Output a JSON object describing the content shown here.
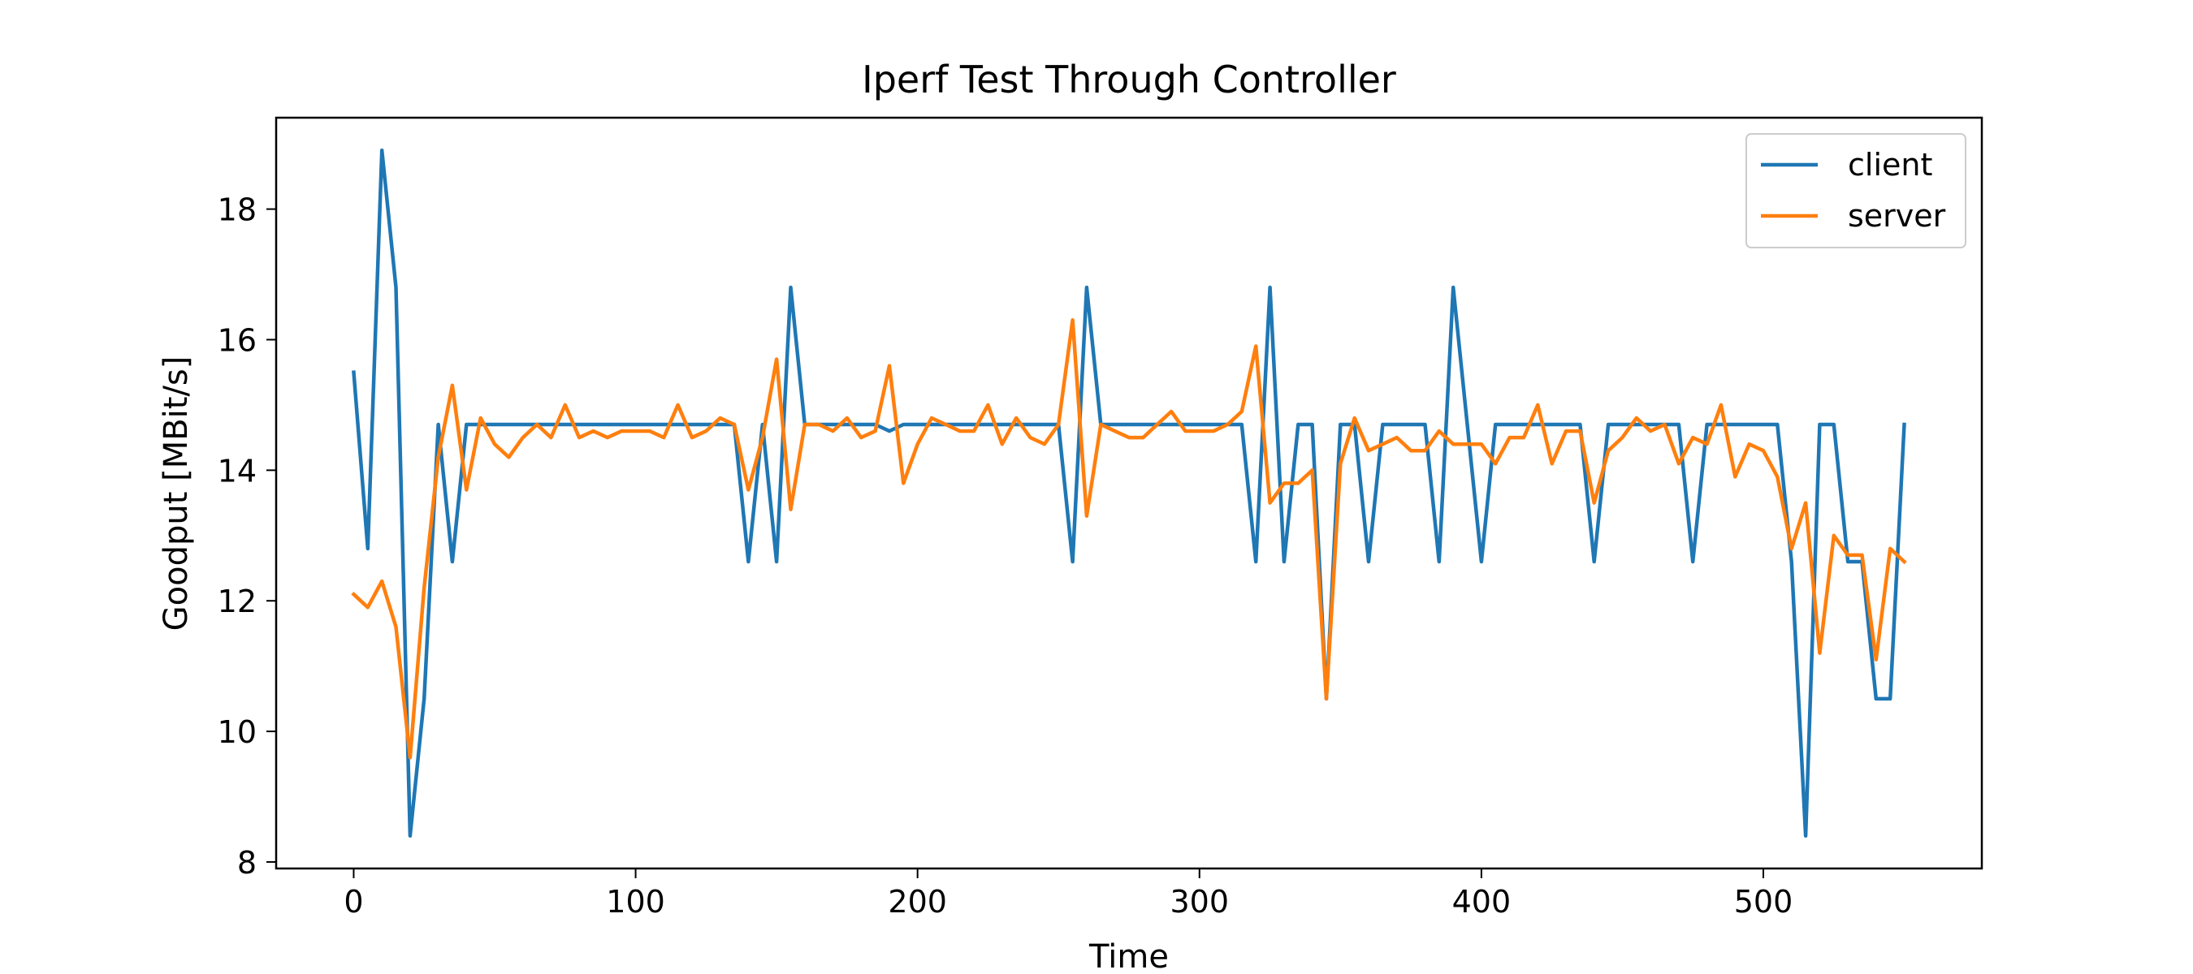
{
  "chart_data": {
    "type": "line",
    "title": "Iperf Test Through Controller",
    "xlabel": "Time",
    "ylabel": "Goodput [MBit/s]",
    "xlim": [
      -27.5,
      577.5
    ],
    "ylim": [
      7.9,
      19.4
    ],
    "xticks": [
      0,
      100,
      200,
      300,
      400,
      500
    ],
    "yticks": [
      8,
      10,
      12,
      14,
      16,
      18
    ],
    "grid": false,
    "legend_position": "top-right",
    "x": [
      0,
      5,
      10,
      15,
      20,
      25,
      30,
      35,
      40,
      45,
      50,
      55,
      60,
      65,
      70,
      75,
      80,
      85,
      90,
      95,
      100,
      105,
      110,
      115,
      120,
      125,
      130,
      135,
      140,
      145,
      150,
      155,
      160,
      165,
      170,
      175,
      180,
      185,
      190,
      195,
      200,
      205,
      210,
      215,
      220,
      225,
      230,
      235,
      240,
      245,
      250,
      255,
      260,
      265,
      270,
      275,
      280,
      285,
      290,
      295,
      300,
      305,
      310,
      315,
      320,
      325,
      330,
      335,
      340,
      345,
      350,
      355,
      360,
      365,
      370,
      375,
      380,
      385,
      390,
      395,
      400,
      405,
      410,
      415,
      420,
      425,
      430,
      435,
      440,
      445,
      450,
      455,
      460,
      465,
      470,
      475,
      480,
      485,
      490,
      495,
      500,
      505,
      510,
      515,
      520,
      525,
      530,
      535,
      540,
      545,
      550
    ],
    "series": [
      {
        "name": "client",
        "color": "#1f77b4",
        "values": [
          15.5,
          12.8,
          18.9,
          16.8,
          8.4,
          10.5,
          14.7,
          12.6,
          14.7,
          14.7,
          14.7,
          14.7,
          14.7,
          14.7,
          14.7,
          14.7,
          14.7,
          14.7,
          14.7,
          14.7,
          14.7,
          14.7,
          14.7,
          14.7,
          14.7,
          14.7,
          14.7,
          14.7,
          12.6,
          14.7,
          12.6,
          16.8,
          14.7,
          14.7,
          14.7,
          14.7,
          14.7,
          14.7,
          14.6,
          14.7,
          14.7,
          14.7,
          14.7,
          14.7,
          14.7,
          14.7,
          14.7,
          14.7,
          14.7,
          14.7,
          14.7,
          12.6,
          16.8,
          14.7,
          14.7,
          14.7,
          14.7,
          14.7,
          14.7,
          14.7,
          14.7,
          14.7,
          14.7,
          14.7,
          12.6,
          16.8,
          12.6,
          14.7,
          14.7,
          10.5,
          14.7,
          14.7,
          12.6,
          14.7,
          14.7,
          14.7,
          14.7,
          12.6,
          16.8,
          14.7,
          12.6,
          14.7,
          14.7,
          14.7,
          14.7,
          14.7,
          14.7,
          14.7,
          12.6,
          14.7,
          14.7,
          14.7,
          14.7,
          14.7,
          14.7,
          12.6,
          14.7,
          14.7,
          14.7,
          14.7,
          14.7,
          14.7,
          12.6,
          8.4,
          14.7,
          14.7,
          12.6,
          12.6,
          10.5,
          10.5,
          14.7
        ]
      },
      {
        "name": "server",
        "color": "#ff7f0e",
        "values": [
          12.1,
          11.9,
          12.3,
          11.6,
          9.6,
          12.2,
          14.2,
          15.3,
          13.7,
          14.8,
          14.4,
          14.2,
          14.5,
          14.7,
          14.5,
          15.0,
          14.5,
          14.6,
          14.5,
          14.6,
          14.6,
          14.6,
          14.5,
          15.0,
          14.5,
          14.6,
          14.8,
          14.7,
          13.7,
          14.5,
          15.7,
          13.4,
          14.7,
          14.7,
          14.6,
          14.8,
          14.5,
          14.6,
          15.6,
          13.8,
          14.4,
          14.8,
          14.7,
          14.6,
          14.6,
          15.0,
          14.4,
          14.8,
          14.5,
          14.4,
          14.7,
          16.3,
          13.3,
          14.7,
          14.6,
          14.5,
          14.5,
          14.7,
          14.9,
          14.6,
          14.6,
          14.6,
          14.7,
          14.9,
          15.9,
          13.5,
          13.8,
          13.8,
          14.0,
          10.5,
          14.1,
          14.8,
          14.3,
          14.4,
          14.5,
          14.3,
          14.3,
          14.6,
          14.4,
          14.4,
          14.4,
          14.1,
          14.5,
          14.5,
          15.0,
          14.1,
          14.6,
          14.6,
          13.5,
          14.3,
          14.5,
          14.8,
          14.6,
          14.7,
          14.1,
          14.5,
          14.4,
          15.0,
          13.9,
          14.4,
          14.3,
          13.9,
          12.8,
          13.5,
          11.2,
          13.0,
          12.7,
          12.7,
          11.1,
          12.8,
          12.6
        ]
      }
    ]
  }
}
